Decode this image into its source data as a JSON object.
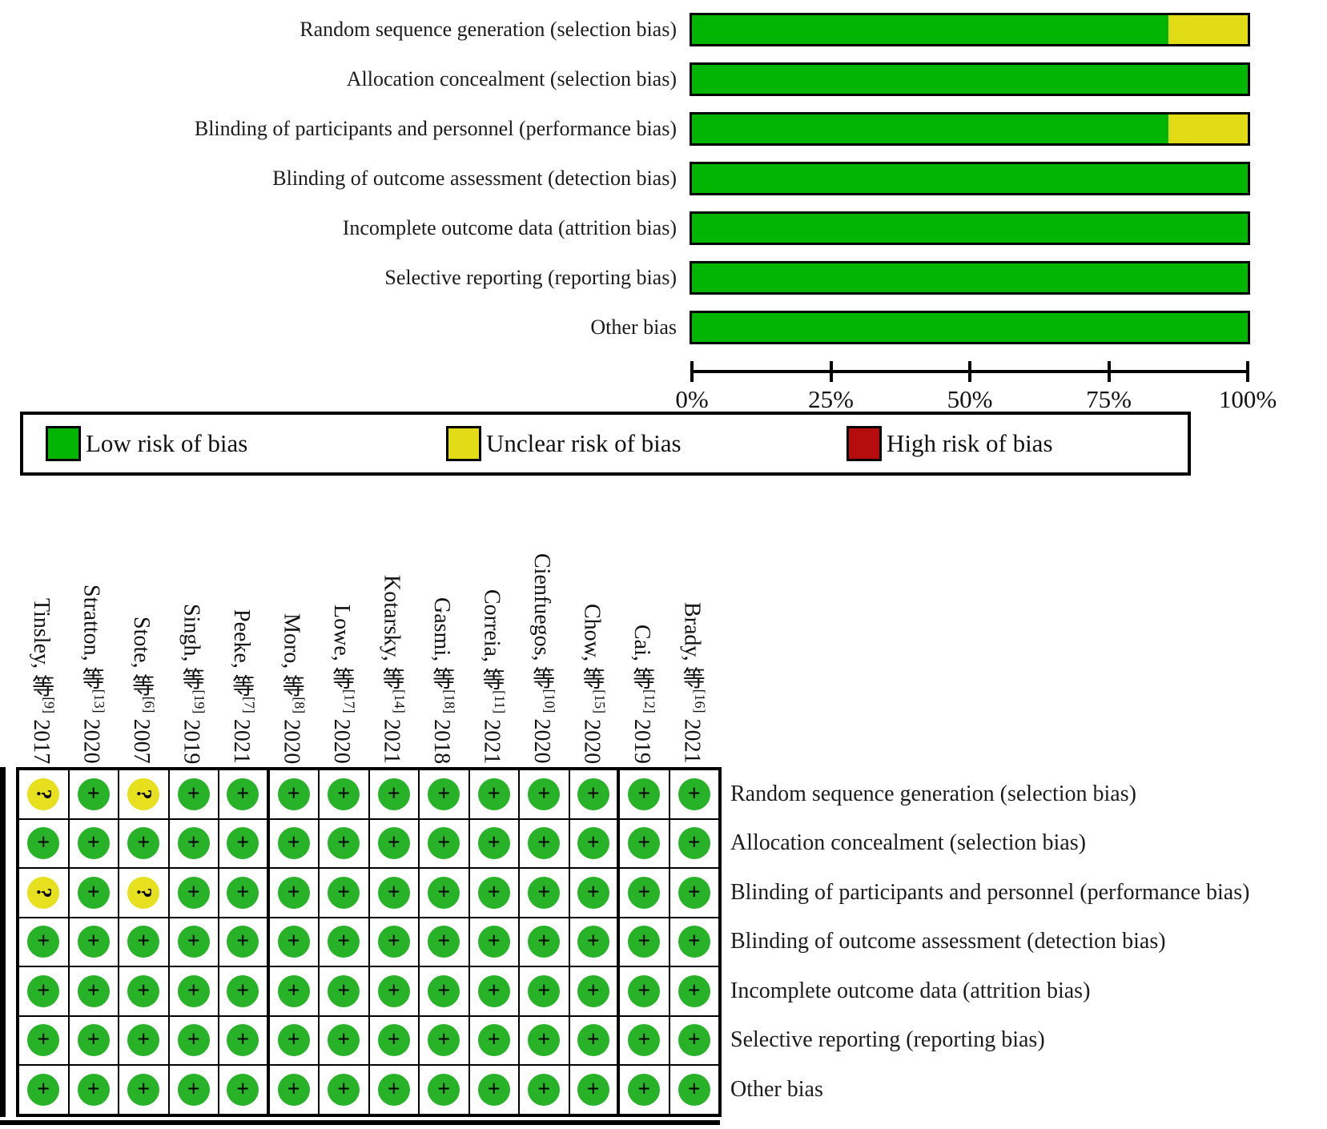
{
  "colors": {
    "bar_green": "#03b503",
    "bar_yellow": "#e2dc17",
    "bar_red": "#b50d0d",
    "circle_green": "#27b227",
    "circle_yellow": "#e6e01f"
  },
  "chart_data": {
    "type": "bar",
    "orientation": "horizontal_stacked",
    "title": "",
    "xlabel": "",
    "ylabel": "",
    "xlim": [
      0,
      100
    ],
    "unit": "%",
    "grid": false,
    "legend_position": "bottom",
    "categories": [
      "Random sequence generation (selection bias)",
      "Allocation concealment (selection bias)",
      "Blinding of participants and personnel (performance bias)",
      "Blinding of outcome assessment (detection bias)",
      "Incomplete outcome data (attrition bias)",
      "Selective reporting (reporting bias)",
      "Other bias"
    ],
    "series": [
      {
        "name": "Low risk of bias",
        "color_key": "bar_green",
        "values": [
          85.7,
          100,
          85.7,
          100,
          100,
          100,
          100
        ]
      },
      {
        "name": "Unclear risk of bias",
        "color_key": "bar_yellow",
        "values": [
          14.3,
          0,
          14.3,
          0,
          0,
          0,
          0
        ]
      },
      {
        "name": "High risk of bias",
        "color_key": "bar_red",
        "values": [
          0,
          0,
          0,
          0,
          0,
          0,
          0
        ]
      }
    ],
    "x_tick_labels": [
      "0%",
      "25%",
      "50%",
      "75%",
      "100%"
    ]
  },
  "legend": {
    "items": [
      {
        "label": "Low risk of bias",
        "color_key": "bar_green"
      },
      {
        "label": "Unclear risk of bias",
        "color_key": "bar_yellow"
      },
      {
        "label": "High risk of bias",
        "color_key": "bar_red"
      }
    ]
  },
  "summary_table": {
    "studies": [
      {
        "name": "Tinsley, 等",
        "ref": "[9]",
        "year": "2017"
      },
      {
        "name": "Stratton, 等",
        "ref": "[13]",
        "year": "2020"
      },
      {
        "name": "Stote, 等",
        "ref": "[6]",
        "year": "2007"
      },
      {
        "name": "Singh, 等",
        "ref": "[19]",
        "year": "2019"
      },
      {
        "name": "Peeke, 等",
        "ref": "[7]",
        "year": "2021"
      },
      {
        "name": "Moro, 等",
        "ref": "[8]",
        "year": "2020"
      },
      {
        "name": "Lowe, 等",
        "ref": "[17]",
        "year": "2020"
      },
      {
        "name": "Kotarsky, 等",
        "ref": "[14]",
        "year": "2021"
      },
      {
        "name": "Gasmi, 等",
        "ref": "[18]",
        "year": "2018"
      },
      {
        "name": "Correia, 等",
        "ref": "[11]",
        "year": "2021"
      },
      {
        "name": "Cienfuegos, 等",
        "ref": "[10]",
        "year": "2020"
      },
      {
        "name": "Chow, 等",
        "ref": "[15]",
        "year": "2020"
      },
      {
        "name": "Cai, 等",
        "ref": "[12]",
        "year": "2019"
      },
      {
        "name": "Brady, 等",
        "ref": "[16]",
        "year": "2021"
      }
    ],
    "symbol_meaning": {
      "+": "Low risk of bias",
      "?": "Unclear risk of bias"
    },
    "rows": [
      {
        "label": "Random sequence generation (selection bias)",
        "judgments": [
          "?",
          "+",
          "?",
          "+",
          "+",
          "+",
          "+",
          "+",
          "+",
          "+",
          "+",
          "+",
          "+",
          "+"
        ]
      },
      {
        "label": "Allocation concealment (selection bias)",
        "judgments": [
          "+",
          "+",
          "+",
          "+",
          "+",
          "+",
          "+",
          "+",
          "+",
          "+",
          "+",
          "+",
          "+",
          "+"
        ]
      },
      {
        "label": "Blinding of participants and personnel (performance bias)",
        "judgments": [
          "?",
          "+",
          "?",
          "+",
          "+",
          "+",
          "+",
          "+",
          "+",
          "+",
          "+",
          "+",
          "+",
          "+"
        ]
      },
      {
        "label": "Blinding of outcome assessment (detection bias)",
        "judgments": [
          "+",
          "+",
          "+",
          "+",
          "+",
          "+",
          "+",
          "+",
          "+",
          "+",
          "+",
          "+",
          "+",
          "+"
        ]
      },
      {
        "label": "Incomplete outcome data (attrition bias)",
        "judgments": [
          "+",
          "+",
          "+",
          "+",
          "+",
          "+",
          "+",
          "+",
          "+",
          "+",
          "+",
          "+",
          "+",
          "+"
        ]
      },
      {
        "label": "Selective reporting (reporting bias)",
        "judgments": [
          "+",
          "+",
          "+",
          "+",
          "+",
          "+",
          "+",
          "+",
          "+",
          "+",
          "+",
          "+",
          "+",
          "+"
        ]
      },
      {
        "label": "Other bias",
        "judgments": [
          "+",
          "+",
          "+",
          "+",
          "+",
          "+",
          "+",
          "+",
          "+",
          "+",
          "+",
          "+",
          "+",
          "+"
        ]
      }
    ]
  }
}
